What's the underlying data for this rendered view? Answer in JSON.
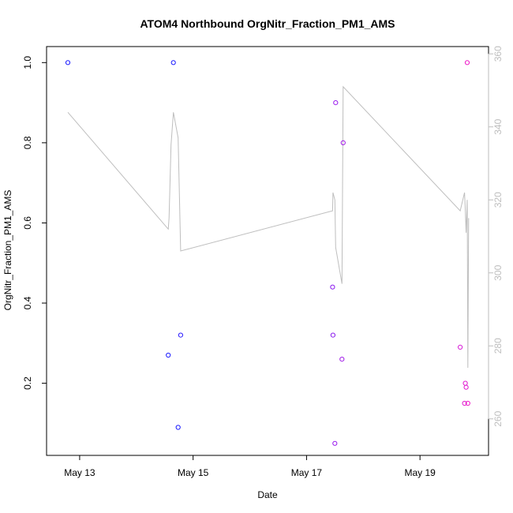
{
  "chart_data": {
    "type": "scatter",
    "title": "ATOM4 Northbound OrgNitr_Fraction_PM1_AMS",
    "xlabel": "Date",
    "ylabel": "OrgNitr_Fraction_PM1_AMS",
    "xlim": [
      "2018-05-12T10:00",
      "2018-05-20T05:00"
    ],
    "ylim": [
      0.02,
      1.04
    ],
    "y2lim": [
      250,
      362
    ],
    "x_ticks": [
      {
        "date": "2018-05-13T00:00",
        "label": "May 13"
      },
      {
        "date": "2018-05-15T00:00",
        "label": "May 15"
      },
      {
        "date": "2018-05-17T00:00",
        "label": "May 17"
      },
      {
        "date": "2018-05-19T00:00",
        "label": "May 19"
      }
    ],
    "y_ticks": [
      "0.2",
      "0.4",
      "0.6",
      "0.8",
      "1.0"
    ],
    "y2_ticks": [
      "260",
      "280",
      "300",
      "320",
      "340",
      "360"
    ],
    "grid": false,
    "colors": {
      "axis": "#000000",
      "line": "#bebebe",
      "right_axis": "#bebebe"
    },
    "points": [
      {
        "x": "2018-05-12T19:00",
        "y": 1.0,
        "color": "#1a1aff"
      },
      {
        "x": "2018-05-14T13:30",
        "y": 0.27,
        "color": "#1a1aff"
      },
      {
        "x": "2018-05-14T15:40",
        "y": 1.0,
        "color": "#1a1aff"
      },
      {
        "x": "2018-05-14T17:40",
        "y": 0.09,
        "color": "#1a1aff"
      },
      {
        "x": "2018-05-14T18:45",
        "y": 0.32,
        "color": "#2a1aff"
      },
      {
        "x": "2018-05-17T11:00",
        "y": 0.44,
        "color": "#8a1aee"
      },
      {
        "x": "2018-05-17T11:10",
        "y": 0.32,
        "color": "#8a1aee"
      },
      {
        "x": "2018-05-17T12:00",
        "y": 0.05,
        "color": "#9a1aee"
      },
      {
        "x": "2018-05-17T12:20",
        "y": 0.9,
        "color": "#9a1aee"
      },
      {
        "x": "2018-05-17T15:00",
        "y": 0.26,
        "color": "#a01ae8"
      },
      {
        "x": "2018-05-17T15:30",
        "y": 0.8,
        "color": "#a01ae8"
      },
      {
        "x": "2018-05-19T17:00",
        "y": 0.29,
        "color": "#d81ad8"
      },
      {
        "x": "2018-05-19T18:50",
        "y": 0.15,
        "color": "#e01ad0"
      },
      {
        "x": "2018-05-19T19:10",
        "y": 0.2,
        "color": "#e01ad0"
      },
      {
        "x": "2018-05-19T19:30",
        "y": 0.19,
        "color": "#e01ad0"
      },
      {
        "x": "2018-05-19T20:00",
        "y": 1.0,
        "color": "#ee1ac8"
      },
      {
        "x": "2018-05-19T20:15",
        "y": 0.15,
        "color": "#ee1ac8"
      }
    ],
    "line": [
      {
        "x": "2018-05-12T19:00",
        "y2": 344
      },
      {
        "x": "2018-05-14T13:30",
        "y2": 312
      },
      {
        "x": "2018-05-14T13:50",
        "y2": 315
      },
      {
        "x": "2018-05-14T14:40",
        "y2": 335
      },
      {
        "x": "2018-05-14T15:40",
        "y2": 344
      },
      {
        "x": "2018-05-14T17:40",
        "y2": 337
      },
      {
        "x": "2018-05-14T18:45",
        "y2": 306
      },
      {
        "x": "2018-05-17T11:00",
        "y2": 317
      },
      {
        "x": "2018-05-17T11:10",
        "y2": 322
      },
      {
        "x": "2018-05-17T12:00",
        "y2": 320
      },
      {
        "x": "2018-05-17T12:20",
        "y2": 307
      },
      {
        "x": "2018-05-17T15:00",
        "y2": 297
      },
      {
        "x": "2018-05-17T15:30",
        "y2": 351
      },
      {
        "x": "2018-05-19T17:00",
        "y2": 317
      },
      {
        "x": "2018-05-19T18:50",
        "y2": 322
      },
      {
        "x": "2018-05-19T19:10",
        "y2": 317
      },
      {
        "x": "2018-05-19T19:30",
        "y2": 311
      },
      {
        "x": "2018-05-19T20:00",
        "y2": 320
      },
      {
        "x": "2018-05-19T20:15",
        "y2": 274
      },
      {
        "x": "2018-05-19T20:35",
        "y2": 315
      }
    ]
  }
}
